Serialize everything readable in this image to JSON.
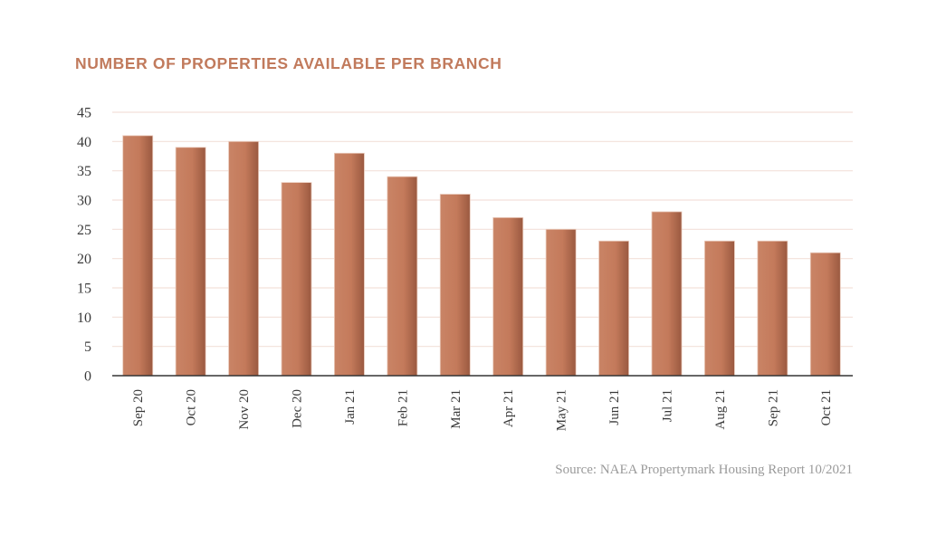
{
  "chart_data": {
    "type": "bar",
    "title": "NUMBER OF PROPERTIES AVAILABLE PER BRANCH",
    "xlabel": "",
    "ylabel": "",
    "categories": [
      "Sep 20",
      "Oct 20",
      "Nov 20",
      "Dec 20",
      "Jan 21",
      "Feb 21",
      "Mar 21",
      "Apr 21",
      "May 21",
      "Jun 21",
      "Jul 21",
      "Aug 21",
      "Sep 21",
      "Oct 21"
    ],
    "values": [
      41,
      39,
      40,
      33,
      38,
      34,
      31,
      27,
      25,
      23,
      28,
      23,
      23,
      21
    ],
    "ylim": [
      0,
      45
    ],
    "yticks": [
      0,
      5,
      10,
      15,
      20,
      25,
      30,
      35,
      40,
      45
    ],
    "grid": true,
    "legend": "none",
    "colors": {
      "bar": "#c77c5d",
      "bar_dark": "#9c5a40",
      "grid": "#f3e1da",
      "axis": "#333333",
      "title": "#c17a5c"
    },
    "source": "Source: NAEA Propertymark Housing Report 10/2021"
  }
}
